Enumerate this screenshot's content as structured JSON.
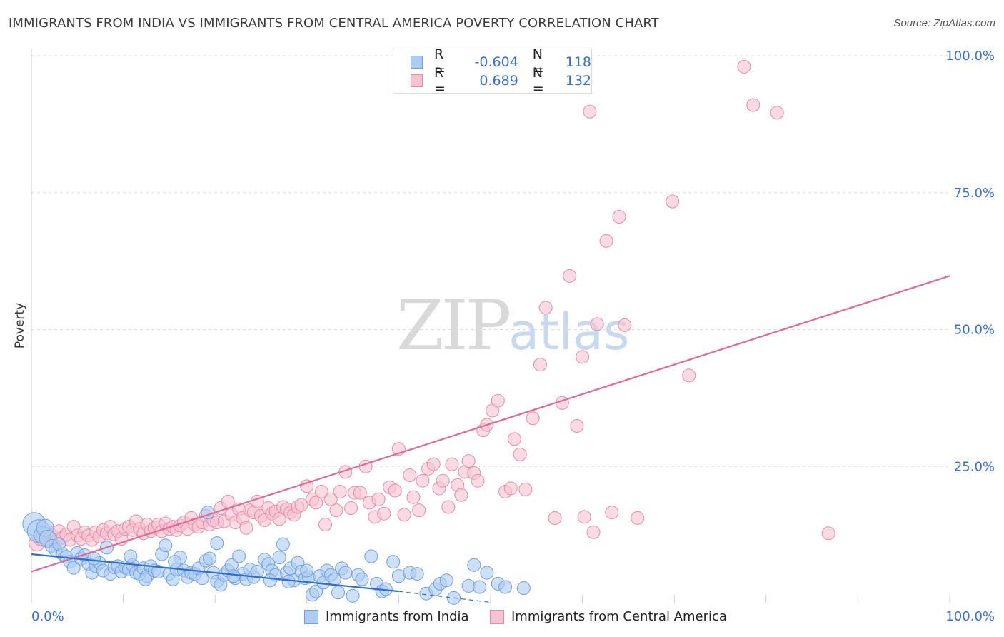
{
  "title": "IMMIGRANTS FROM INDIA VS IMMIGRANTS FROM CENTRAL AMERICA POVERTY CORRELATION CHART",
  "source": "Source: ZipAtlas.com",
  "watermark": {
    "zip": "ZIP",
    "atlas": "atlas"
  },
  "legend_top": {
    "rows": [
      {
        "r_label": "R =",
        "r_value": "-0.604",
        "n_label": "N =",
        "n_value": "118"
      },
      {
        "r_label": "R =",
        "r_value": "0.689",
        "n_label": "N =",
        "n_value": "132"
      }
    ]
  },
  "colors": {
    "india_fill": "#aecbf2",
    "india_stroke": "#6f9ee0",
    "india_line": "#2f6fd0",
    "ca_fill": "#f6c3d2",
    "ca_stroke": "#e98aa8",
    "ca_line": "#e06a95",
    "axis_text": "#3a6fd0",
    "grid": "#dddddd"
  },
  "chart_data": {
    "type": "scatter",
    "title": "IMMIGRANTS FROM INDIA VS IMMIGRANTS FROM CENTRAL AMERICA POVERTY CORRELATION CHART",
    "xlabel": "",
    "ylabel": "Poverty",
    "xlim": [
      0,
      100
    ],
    "ylim": [
      0,
      100
    ],
    "x_tick_labels": [
      "0.0%",
      "100.0%"
    ],
    "y_tick_labels": [
      "25.0%",
      "50.0%",
      "75.0%",
      "100.0%"
    ],
    "y_ticks": [
      25,
      50,
      75,
      100
    ],
    "grid": true,
    "legend_position": "bottom",
    "series": [
      {
        "name": "Immigrants from India",
        "R": -0.604,
        "N": 118,
        "trend": {
          "x": [
            0,
            40
          ],
          "y": [
            9.0,
            2.2
          ]
        },
        "trend_dashed": {
          "x": [
            40,
            50
          ],
          "y": [
            2.2,
            0.2
          ]
        },
        "points": [
          [
            0.3,
            14.5
          ],
          [
            0.8,
            13.2
          ],
          [
            1.2,
            12.5
          ],
          [
            1.5,
            13.8
          ],
          [
            1.8,
            11.8
          ],
          [
            2.2,
            10.5
          ],
          [
            2.6,
            9.8
          ],
          [
            3.0,
            10.8
          ],
          [
            3.4,
            9.0
          ],
          [
            3.8,
            8.5
          ],
          [
            4.2,
            7.6
          ],
          [
            4.6,
            6.5
          ],
          [
            5.0,
            9.2
          ],
          [
            5.4,
            8.2
          ],
          [
            5.8,
            8.8
          ],
          [
            6.2,
            7.2
          ],
          [
            6.6,
            5.6
          ],
          [
            7.0,
            6.8
          ],
          [
            7.4,
            7.4
          ],
          [
            7.8,
            6.0
          ],
          [
            8.2,
            10.2
          ],
          [
            8.6,
            5.4
          ],
          [
            9.0,
            6.6
          ],
          [
            9.4,
            6.8
          ],
          [
            9.8,
            5.8
          ],
          [
            10.2,
            6.6
          ],
          [
            10.6,
            6.2
          ],
          [
            11.0,
            7.0
          ],
          [
            11.4,
            5.6
          ],
          [
            11.8,
            5.4
          ],
          [
            12.2,
            6.4
          ],
          [
            12.6,
            5.0
          ],
          [
            13.0,
            6.8
          ],
          [
            13.4,
            6.0
          ],
          [
            13.8,
            5.8
          ],
          [
            14.2,
            9.0
          ],
          [
            14.6,
            10.6
          ],
          [
            15.0,
            5.4
          ],
          [
            15.4,
            4.4
          ],
          [
            15.8,
            6.2
          ],
          [
            16.2,
            8.4
          ],
          [
            16.6,
            6.0
          ],
          [
            17.0,
            4.8
          ],
          [
            17.4,
            5.6
          ],
          [
            17.8,
            5.4
          ],
          [
            18.2,
            6.4
          ],
          [
            18.6,
            4.6
          ],
          [
            19.0,
            7.8
          ],
          [
            19.4,
            8.2
          ],
          [
            19.8,
            5.6
          ],
          [
            20.2,
            4.0
          ],
          [
            20.6,
            3.4
          ],
          [
            21.0,
            5.2
          ],
          [
            21.4,
            6.0
          ],
          [
            21.8,
            7.0
          ],
          [
            22.2,
            4.6
          ],
          [
            22.6,
            8.6
          ],
          [
            23.0,
            5.4
          ],
          [
            23.4,
            4.4
          ],
          [
            23.8,
            6.2
          ],
          [
            24.2,
            4.8
          ],
          [
            24.6,
            5.8
          ],
          [
            15.6,
            7.6
          ],
          [
            25.4,
            8.0
          ],
          [
            25.8,
            7.2
          ],
          [
            26.2,
            6.0
          ],
          [
            26.6,
            5.2
          ],
          [
            27.0,
            8.4
          ],
          [
            27.4,
            10.8
          ],
          [
            27.8,
            5.6
          ],
          [
            28.2,
            6.4
          ],
          [
            28.6,
            4.2
          ],
          [
            29.0,
            7.4
          ],
          [
            29.4,
            5.8
          ],
          [
            29.8,
            4.6
          ],
          [
            30.2,
            4.8
          ],
          [
            30.6,
            1.6
          ],
          [
            31.0,
            2.2
          ],
          [
            31.4,
            5.0
          ],
          [
            31.8,
            3.8
          ],
          [
            32.2,
            6.0
          ],
          [
            32.6,
            5.2
          ],
          [
            33.0,
            4.4
          ],
          [
            33.4,
            2.0
          ],
          [
            33.8,
            6.4
          ],
          [
            34.2,
            5.6
          ],
          [
            35.0,
            1.4
          ],
          [
            35.6,
            5.2
          ],
          [
            36.0,
            4.4
          ],
          [
            37.0,
            8.6
          ],
          [
            37.6,
            3.6
          ],
          [
            38.2,
            2.2
          ],
          [
            38.6,
            2.6
          ],
          [
            39.4,
            7.6
          ],
          [
            40.0,
            5.0
          ],
          [
            41.2,
            5.6
          ],
          [
            42.0,
            5.4
          ],
          [
            43.0,
            1.8
          ],
          [
            44.0,
            2.6
          ],
          [
            44.5,
            3.6
          ],
          [
            45.2,
            4.2
          ],
          [
            46.0,
            1.0
          ],
          [
            47.6,
            3.2
          ],
          [
            48.2,
            7.0
          ],
          [
            48.8,
            3.0
          ],
          [
            49.6,
            5.6
          ],
          [
            50.8,
            3.6
          ],
          [
            51.6,
            3.0
          ],
          [
            53.6,
            2.8
          ],
          [
            6.8,
            8.2
          ],
          [
            10.8,
            8.6
          ],
          [
            12.4,
            4.4
          ],
          [
            19.2,
            16.6
          ],
          [
            20.2,
            11.0
          ],
          [
            22.0,
            5.0
          ],
          [
            26.0,
            4.2
          ],
          [
            28.0,
            4.0
          ],
          [
            30.0,
            6.0
          ]
        ]
      },
      {
        "name": "Immigrants from Central America",
        "R": 0.689,
        "N": 132,
        "trend": {
          "x": [
            0,
            100
          ],
          "y": [
            5.8,
            59.8
          ]
        },
        "points": [
          [
            0.6,
            11.0
          ],
          [
            1.0,
            12.0
          ],
          [
            1.4,
            11.8
          ],
          [
            1.8,
            12.8
          ],
          [
            2.2,
            12.4
          ],
          [
            2.6,
            11.2
          ],
          [
            3.0,
            13.2
          ],
          [
            3.4,
            12.0
          ],
          [
            3.8,
            12.6
          ],
          [
            4.2,
            11.6
          ],
          [
            4.6,
            14.0
          ],
          [
            5.0,
            12.4
          ],
          [
            5.4,
            11.8
          ],
          [
            5.8,
            13.0
          ],
          [
            6.2,
            12.4
          ],
          [
            6.6,
            11.6
          ],
          [
            7.0,
            13.0
          ],
          [
            7.4,
            12.2
          ],
          [
            7.8,
            13.4
          ],
          [
            8.2,
            12.8
          ],
          [
            8.6,
            14.0
          ],
          [
            9.0,
            12.6
          ],
          [
            9.4,
            13.2
          ],
          [
            9.8,
            11.8
          ],
          [
            10.2,
            13.6
          ],
          [
            10.6,
            14.0
          ],
          [
            11.0,
            13.4
          ],
          [
            11.4,
            15.0
          ],
          [
            11.8,
            13.6
          ],
          [
            12.2,
            12.8
          ],
          [
            12.6,
            14.4
          ],
          [
            13.0,
            13.2
          ],
          [
            13.4,
            13.8
          ],
          [
            13.8,
            14.4
          ],
          [
            14.2,
            13.2
          ],
          [
            14.6,
            14.6
          ],
          [
            15.0,
            13.6
          ],
          [
            15.4,
            14.0
          ],
          [
            15.8,
            13.4
          ],
          [
            16.2,
            14.2
          ],
          [
            16.6,
            14.8
          ],
          [
            17.0,
            13.6
          ],
          [
            17.4,
            15.6
          ],
          [
            17.8,
            14.4
          ],
          [
            18.2,
            14.0
          ],
          [
            18.6,
            14.8
          ],
          [
            19.0,
            16.0
          ],
          [
            19.4,
            14.4
          ],
          [
            19.8,
            15.2
          ],
          [
            20.2,
            14.8
          ],
          [
            20.6,
            17.4
          ],
          [
            21.0,
            15.0
          ],
          [
            21.4,
            18.6
          ],
          [
            21.8,
            16.2
          ],
          [
            22.2,
            14.8
          ],
          [
            22.6,
            17.2
          ],
          [
            23.0,
            15.6
          ],
          [
            23.4,
            13.8
          ],
          [
            23.8,
            17.0
          ],
          [
            24.2,
            16.6
          ],
          [
            24.6,
            18.6
          ],
          [
            25.0,
            16.0
          ],
          [
            25.4,
            15.2
          ],
          [
            25.8,
            17.4
          ],
          [
            26.2,
            16.4
          ],
          [
            26.6,
            16.8
          ],
          [
            27.0,
            15.4
          ],
          [
            27.4,
            17.6
          ],
          [
            27.8,
            17.2
          ],
          [
            28.2,
            16.6
          ],
          [
            28.6,
            16.2
          ],
          [
            29.0,
            17.6
          ],
          [
            29.4,
            18.0
          ],
          [
            30.0,
            21.4
          ],
          [
            30.6,
            19.0
          ],
          [
            31.0,
            18.4
          ],
          [
            31.6,
            20.4
          ],
          [
            32.0,
            14.4
          ],
          [
            32.6,
            19.0
          ],
          [
            33.2,
            17.0
          ],
          [
            33.6,
            20.4
          ],
          [
            34.2,
            24.0
          ],
          [
            34.8,
            17.4
          ],
          [
            35.2,
            20.2
          ],
          [
            35.8,
            20.2
          ],
          [
            36.4,
            25.0
          ],
          [
            36.8,
            18.4
          ],
          [
            37.4,
            15.8
          ],
          [
            37.8,
            19.0
          ],
          [
            38.4,
            16.4
          ],
          [
            39.0,
            21.2
          ],
          [
            39.6,
            20.6
          ],
          [
            40.0,
            28.2
          ],
          [
            40.6,
            16.2
          ],
          [
            41.2,
            23.4
          ],
          [
            41.6,
            19.4
          ],
          [
            42.2,
            17.0
          ],
          [
            42.6,
            22.4
          ],
          [
            43.2,
            24.6
          ],
          [
            43.8,
            25.4
          ],
          [
            44.4,
            21.0
          ],
          [
            44.8,
            22.4
          ],
          [
            45.4,
            17.6
          ],
          [
            45.8,
            25.4
          ],
          [
            46.4,
            21.6
          ],
          [
            46.8,
            19.8
          ],
          [
            47.2,
            24.0
          ],
          [
            47.6,
            26.0
          ],
          [
            48.2,
            23.8
          ],
          [
            48.6,
            22.4
          ],
          [
            49.2,
            31.6
          ],
          [
            49.6,
            32.6
          ],
          [
            50.2,
            35.2
          ],
          [
            50.8,
            37.0
          ],
          [
            51.6,
            20.4
          ],
          [
            52.2,
            21.0
          ],
          [
            52.6,
            30.0
          ],
          [
            53.2,
            27.2
          ],
          [
            53.8,
            20.8
          ],
          [
            54.6,
            33.8
          ],
          [
            55.4,
            43.6
          ],
          [
            56.0,
            54.0
          ],
          [
            57.0,
            15.6
          ],
          [
            57.8,
            36.6
          ],
          [
            58.6,
            59.8
          ],
          [
            59.4,
            32.4
          ],
          [
            60.0,
            45.0
          ],
          [
            60.8,
            89.8
          ],
          [
            61.2,
            13.0
          ],
          [
            61.6,
            51.0
          ],
          [
            62.6,
            66.2
          ],
          [
            63.2,
            16.6
          ],
          [
            64.0,
            70.6
          ],
          [
            66.0,
            15.6
          ],
          [
            69.8,
            73.4
          ],
          [
            71.6,
            41.6
          ],
          [
            77.6,
            98.0
          ],
          [
            78.6,
            91.0
          ],
          [
            81.2,
            89.6
          ],
          [
            86.8,
            12.8
          ],
          [
            60.2,
            15.8
          ],
          [
            64.6,
            50.8
          ]
        ]
      }
    ]
  },
  "legend_bottom": [
    {
      "label": "Immigrants from India"
    },
    {
      "label": "Immigrants from Central America"
    }
  ]
}
